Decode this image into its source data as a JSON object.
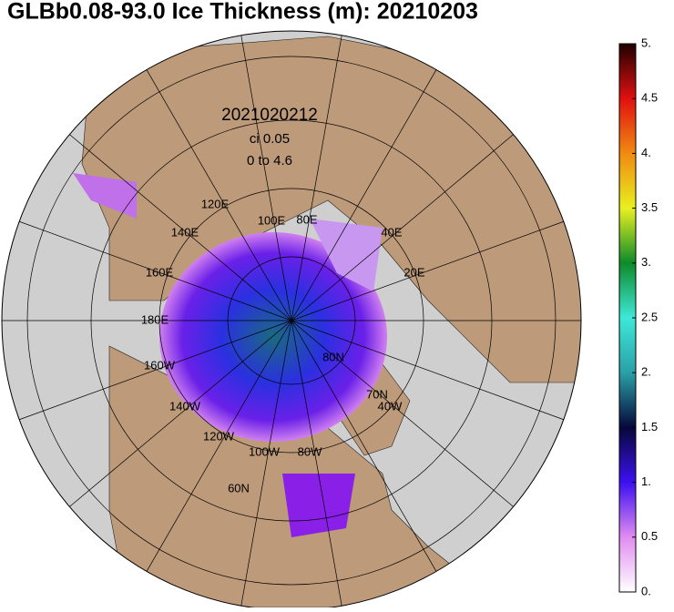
{
  "title": "GLBb0.08-93.0 Ice Thickness (m): 20210203",
  "annotations": [
    "2021020212",
    "ci 0.05",
    "0 to 4.6"
  ],
  "longitude_labels": [
    "120E",
    "140E",
    "100E",
    "80E",
    "160E",
    "180E",
    "160W",
    "140W",
    "120W",
    "100W",
    "80W",
    "40E",
    "20E",
    "40W"
  ],
  "latitude_labels": [
    "80N",
    "70N",
    "60N"
  ],
  "colorbar": {
    "lim": [
      0,
      5
    ],
    "ticks": [
      {
        "value": 5,
        "label": "5."
      },
      4.5,
      {
        "value": 4,
        "label": "4."
      },
      3.5,
      {
        "value": 3,
        "label": "3."
      },
      2.5,
      {
        "value": 2,
        "label": "2."
      },
      1.5,
      {
        "value": 1,
        "label": "1."
      },
      0.5,
      {
        "value": 0,
        "label": "0."
      }
    ]
  }
}
